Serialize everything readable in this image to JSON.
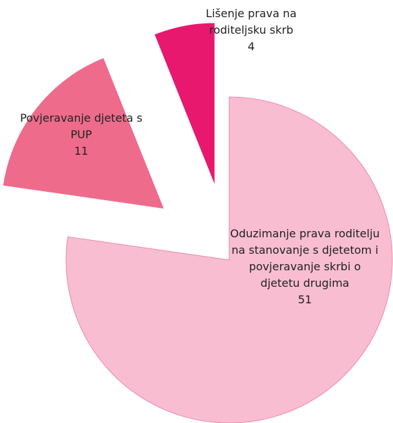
{
  "chart_data": {
    "type": "pie",
    "categories": [
      "Oduzimanje prava roditelju na stanovanje s djetetom i povjeravanje skrbi o djetetu drugima",
      "Povjeravanje djeteta s PUP",
      "Lišenje prava na roditeljsku skrb"
    ],
    "values": [
      51,
      11,
      4
    ],
    "colors": [
      "#f9bdd1",
      "#ee6b8b",
      "#e7186e"
    ]
  }
}
